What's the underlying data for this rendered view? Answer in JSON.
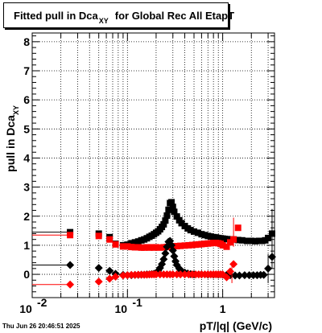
{
  "title": {
    "main": "Fitted pull in Dca",
    "subscript": "XY",
    "rest": "for Global Rec All EtapT"
  },
  "timestamp": "Thu Jun 26 20:46:51 2025",
  "chart_data": {
    "type": "scatter",
    "title": "Fitted pull in Dca XY for Global Rec All EtapT",
    "xlabel": "pT/|q| (GeV/c)",
    "ylabel": "pull in Dca",
    "ylabel_subscript": "XY",
    "xscale": "log",
    "xlim": [
      0.01,
      3.5
    ],
    "ylim": [
      -0.8,
      8.3
    ],
    "grid": true,
    "x_tick_labels": [
      {
        "value": 0.01,
        "base": "10",
        "exp": "-2"
      },
      {
        "value": 0.1,
        "base": "10",
        "exp": "-1"
      },
      {
        "value": 1,
        "base": "1",
        "exp": ""
      }
    ],
    "y_ticks": [
      0,
      1,
      2,
      3,
      4,
      5,
      6,
      7,
      8
    ],
    "series": [
      {
        "marker": "square",
        "color": "#000000",
        "points": [
          [
            0.0102,
            1.45
          ],
          [
            0.025,
            1.45
          ],
          [
            0.05,
            1.4
          ],
          [
            0.065,
            1.28
          ],
          [
            0.075,
            1.05
          ],
          [
            0.09,
            1.0
          ],
          [
            0.1,
            1.02
          ],
          [
            0.11,
            1.07
          ],
          [
            0.12,
            1.1
          ],
          [
            0.13,
            1.13
          ],
          [
            0.14,
            1.17
          ],
          [
            0.15,
            1.2
          ],
          [
            0.16,
            1.24
          ],
          [
            0.17,
            1.29
          ],
          [
            0.18,
            1.33
          ],
          [
            0.19,
            1.38
          ],
          [
            0.2,
            1.43
          ],
          [
            0.21,
            1.48
          ],
          [
            0.22,
            1.55
          ],
          [
            0.23,
            1.63
          ],
          [
            0.24,
            1.72
          ],
          [
            0.25,
            1.85
          ],
          [
            0.26,
            2.02
          ],
          [
            0.27,
            2.22
          ],
          [
            0.28,
            2.45
          ],
          [
            0.29,
            2.48
          ],
          [
            0.3,
            2.32
          ],
          [
            0.31,
            2.15
          ],
          [
            0.33,
            1.99
          ],
          [
            0.35,
            1.86
          ],
          [
            0.37,
            1.76
          ],
          [
            0.4,
            1.66
          ],
          [
            0.43,
            1.58
          ],
          [
            0.46,
            1.52
          ],
          [
            0.5,
            1.47
          ],
          [
            0.55,
            1.43
          ],
          [
            0.6,
            1.38
          ],
          [
            0.65,
            1.35
          ],
          [
            0.7,
            1.32
          ],
          [
            0.75,
            1.3
          ],
          [
            0.8,
            1.28
          ],
          [
            0.85,
            1.27
          ],
          [
            0.9,
            1.25
          ],
          [
            0.95,
            1.24
          ],
          [
            1.0,
            1.23
          ],
          [
            1.05,
            1.22
          ],
          [
            1.12,
            1.21
          ],
          [
            1.2,
            1.2
          ],
          [
            1.3,
            1.2
          ],
          [
            1.45,
            1.18
          ],
          [
            1.6,
            1.17
          ],
          [
            1.8,
            1.15
          ],
          [
            2.0,
            1.15
          ],
          [
            2.2,
            1.14
          ],
          [
            2.4,
            1.15
          ],
          [
            2.6,
            1.15
          ],
          [
            2.8,
            1.17
          ],
          [
            3.0,
            1.25
          ],
          [
            3.3,
            1.4
          ]
        ]
      },
      {
        "marker": "square",
        "color": "#ff0000",
        "points": [
          [
            0.0102,
            1.35
          ],
          [
            0.025,
            1.35
          ],
          [
            0.05,
            1.32
          ],
          [
            0.065,
            1.2
          ],
          [
            0.075,
            1.03
          ],
          [
            0.09,
            0.96
          ],
          [
            0.1,
            0.96
          ],
          [
            0.11,
            0.94
          ],
          [
            0.12,
            0.93
          ],
          [
            0.13,
            0.93
          ],
          [
            0.14,
            0.92
          ],
          [
            0.15,
            0.92
          ],
          [
            0.16,
            0.93
          ],
          [
            0.17,
            0.92
          ],
          [
            0.18,
            0.93
          ],
          [
            0.19,
            0.92
          ],
          [
            0.2,
            0.93
          ],
          [
            0.22,
            0.92
          ],
          [
            0.24,
            0.93
          ],
          [
            0.26,
            0.94
          ],
          [
            0.28,
            0.95
          ],
          [
            0.3,
            0.96
          ],
          [
            0.33,
            0.97
          ],
          [
            0.36,
            0.98
          ],
          [
            0.4,
            0.99
          ],
          [
            0.44,
            1.0
          ],
          [
            0.48,
            1.01
          ],
          [
            0.52,
            1.02
          ],
          [
            0.56,
            1.03
          ],
          [
            0.6,
            1.04
          ],
          [
            0.65,
            1.05
          ],
          [
            0.7,
            1.06
          ],
          [
            0.75,
            1.07
          ],
          [
            0.8,
            1.08
          ],
          [
            0.85,
            1.08
          ],
          [
            0.9,
            1.07
          ],
          [
            0.95,
            1.05
          ],
          [
            1.0,
            1.0
          ],
          [
            1.1,
            0.95
          ],
          [
            1.2,
            1.1
          ],
          [
            1.3,
            1.2
          ],
          [
            1.45,
            1.6
          ]
        ]
      },
      {
        "marker": "diamond",
        "color": "#000000",
        "points": [
          [
            0.0102,
            0.32
          ],
          [
            0.025,
            0.32
          ],
          [
            0.05,
            0.22
          ],
          [
            0.065,
            0.12
          ],
          [
            0.075,
            0.02
          ],
          [
            0.09,
            -0.02
          ],
          [
            0.1,
            -0.03
          ],
          [
            0.11,
            -0.03
          ],
          [
            0.12,
            -0.02
          ],
          [
            0.13,
            -0.02
          ],
          [
            0.14,
            -0.01
          ],
          [
            0.15,
            -0.01
          ],
          [
            0.16,
            0.0
          ],
          [
            0.17,
            0.0
          ],
          [
            0.18,
            0.01
          ],
          [
            0.19,
            0.02
          ],
          [
            0.2,
            0.05
          ],
          [
            0.21,
            0.12
          ],
          [
            0.22,
            0.22
          ],
          [
            0.23,
            0.35
          ],
          [
            0.24,
            0.52
          ],
          [
            0.25,
            0.72
          ],
          [
            0.26,
            0.95
          ],
          [
            0.27,
            1.12
          ],
          [
            0.28,
            1.15
          ],
          [
            0.29,
            1.0
          ],
          [
            0.3,
            0.82
          ],
          [
            0.31,
            0.62
          ],
          [
            0.32,
            0.45
          ],
          [
            0.33,
            0.32
          ],
          [
            0.35,
            0.2
          ],
          [
            0.37,
            0.12
          ],
          [
            0.4,
            0.06
          ],
          [
            0.43,
            0.03
          ],
          [
            0.46,
            0.01
          ],
          [
            0.5,
            0.0
          ],
          [
            0.6,
            0.0
          ],
          [
            0.7,
            -0.01
          ],
          [
            0.8,
            -0.01
          ],
          [
            0.9,
            -0.01
          ],
          [
            1.0,
            -0.01
          ],
          [
            1.1,
            -0.02
          ],
          [
            1.2,
            -0.03
          ],
          [
            1.35,
            -0.04
          ],
          [
            1.5,
            -0.04
          ],
          [
            1.7,
            -0.03
          ],
          [
            1.9,
            -0.03
          ],
          [
            2.1,
            -0.03
          ],
          [
            2.3,
            -0.03
          ],
          [
            2.5,
            -0.02
          ],
          [
            2.7,
            -0.02
          ],
          [
            3.0,
            0.2
          ],
          [
            3.3,
            0.6
          ]
        ]
      },
      {
        "marker": "diamond",
        "color": "#ff0000",
        "points": [
          [
            0.0102,
            -0.35
          ],
          [
            0.025,
            -0.35
          ],
          [
            0.05,
            -0.25
          ],
          [
            0.065,
            -0.15
          ],
          [
            0.075,
            -0.08
          ],
          [
            0.09,
            -0.04
          ],
          [
            0.1,
            -0.03
          ],
          [
            0.11,
            -0.02
          ],
          [
            0.12,
            -0.02
          ],
          [
            0.13,
            -0.01
          ],
          [
            0.14,
            -0.01
          ],
          [
            0.15,
            -0.01
          ],
          [
            0.16,
            -0.01
          ],
          [
            0.17,
            0.0
          ],
          [
            0.18,
            0.0
          ],
          [
            0.19,
            0.0
          ],
          [
            0.2,
            0.0
          ],
          [
            0.22,
            0.0
          ],
          [
            0.24,
            0.0
          ],
          [
            0.26,
            0.0
          ],
          [
            0.28,
            0.0
          ],
          [
            0.3,
            0.0
          ],
          [
            0.33,
            0.0
          ],
          [
            0.36,
            0.0
          ],
          [
            0.4,
            0.0
          ],
          [
            0.44,
            0.0
          ],
          [
            0.48,
            0.0
          ],
          [
            0.52,
            0.0
          ],
          [
            0.56,
            0.0
          ],
          [
            0.6,
            0.0
          ],
          [
            0.65,
            0.0
          ],
          [
            0.7,
            0.0
          ],
          [
            0.75,
            0.0
          ],
          [
            0.8,
            0.0
          ],
          [
            0.85,
            0.0
          ],
          [
            0.9,
            0.0
          ],
          [
            0.95,
            0.0
          ],
          [
            1.0,
            0.0
          ],
          [
            1.1,
            -0.1
          ],
          [
            1.2,
            0.1
          ],
          [
            1.3,
            0.35
          ]
        ]
      }
    ]
  }
}
